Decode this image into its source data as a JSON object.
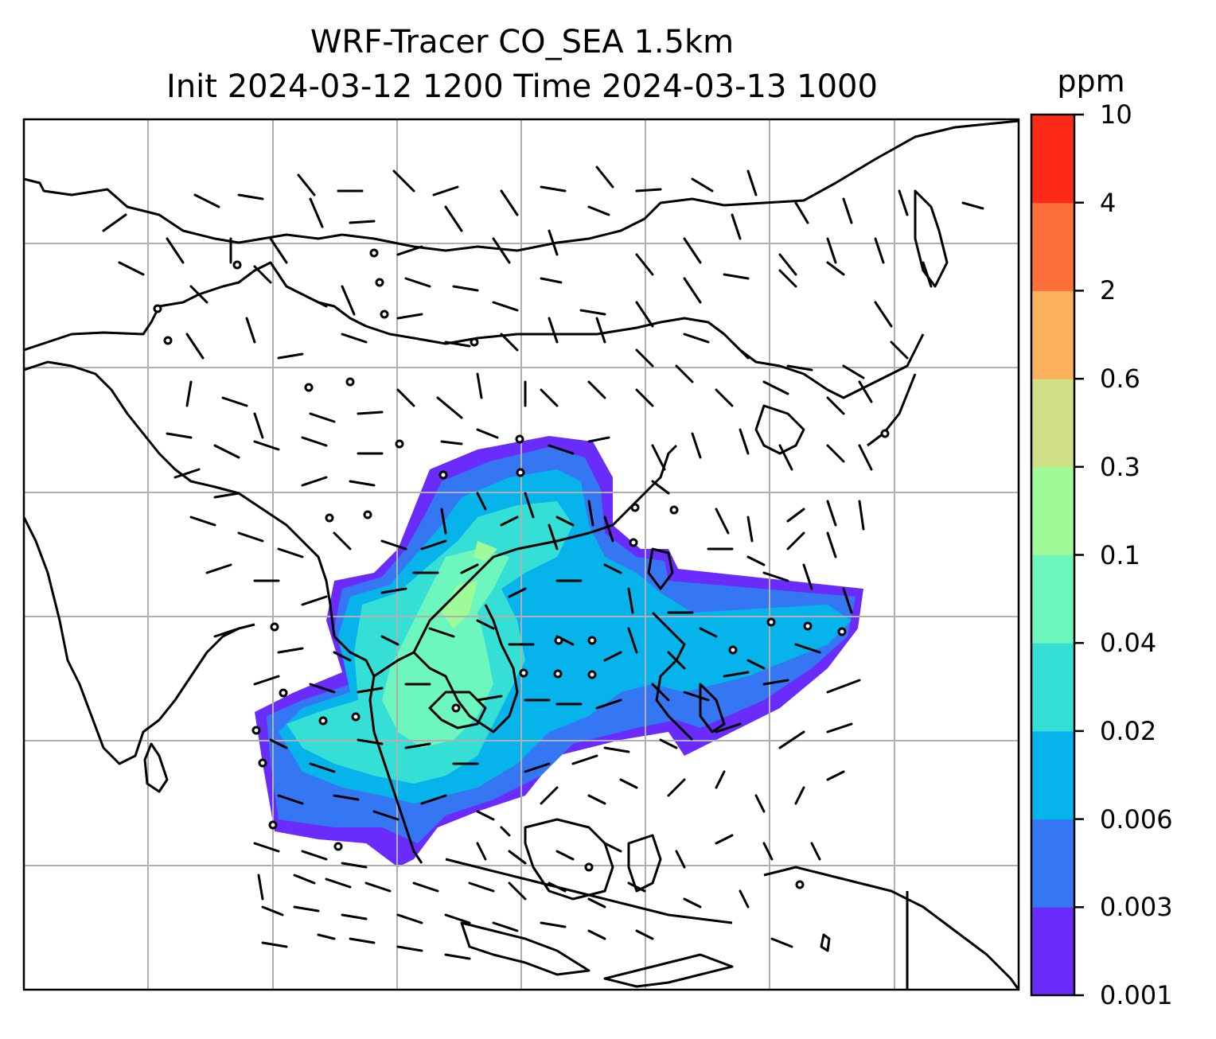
{
  "title": {
    "line1": "WRF-Tracer CO_SEA 1.5km",
    "line2": "Init 2024-03-12 1200 Time 2024-03-13 1000"
  },
  "colorbar": {
    "unit": "ppm",
    "levels": [
      "0.001",
      "0.003",
      "0.006",
      "0.02",
      "0.04",
      "0.1",
      "0.3",
      "0.6",
      "2",
      "4",
      "10"
    ],
    "colors": [
      "#6a2cfb",
      "#3576f2",
      "#06b3ea",
      "#35dfd6",
      "#6df6be",
      "#9ffb98",
      "#d0e086",
      "#fdb05d",
      "#fe6f3a",
      "#fe2a18"
    ]
  },
  "map": {
    "region": "Southeast Asia",
    "gridlines": true,
    "field": "CO tracer concentration",
    "overlay": "wind barbs"
  }
}
